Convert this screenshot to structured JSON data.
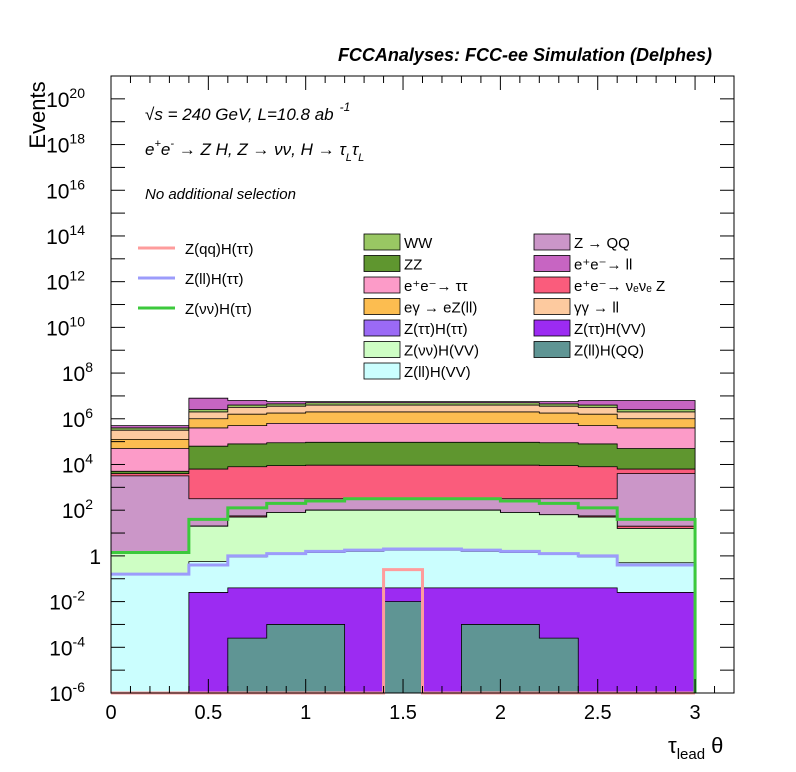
{
  "header": {
    "title": "FCCAnalyses: FCC-ee Simulation (Delphes)"
  },
  "annotations": {
    "line1_sqrt": "√s",
    "line1_rest": " = 240 GeV, L=10.8 ab",
    "line1_exp": "-1",
    "line2_e1": "e",
    "line2_e1_sup": "+",
    "line2_e2": "e",
    "line2_e2_sup": "-",
    "line2_proc": " → Z H, Z  → νν, H  → τ",
    "line2_sub1": "L",
    "line2_tau2": "τ",
    "line2_sub2": "L",
    "selection": "No additional selection"
  },
  "axes": {
    "ylabel": "Events",
    "xlabel_main": "τ",
    "xlabel_sub": "lead",
    "xlabel_var": " θ"
  },
  "chart_data": {
    "type": "bar",
    "stacked": true,
    "y_scale": "log",
    "x_range": [
      0,
      3.2
    ],
    "y_range": [
      1e-06,
      1e+21
    ],
    "x_edges": [
      0,
      0.2,
      0.4,
      0.6,
      0.8,
      1.0,
      1.2,
      1.4,
      1.6,
      1.8,
      2.0,
      2.2,
      2.4,
      2.6,
      2.8,
      3.0
    ],
    "x_ticks": [
      {
        "v": 0,
        "label": "0"
      },
      {
        "v": 0.5,
        "label": "0.5"
      },
      {
        "v": 1,
        "label": "1"
      },
      {
        "v": 1.5,
        "label": "1.5"
      },
      {
        "v": 2,
        "label": "2"
      },
      {
        "v": 2.5,
        "label": "2.5"
      },
      {
        "v": 3,
        "label": "3"
      }
    ],
    "y_ticks": [
      {
        "exp": -6,
        "base": "10",
        "sup": "-6"
      },
      {
        "exp": -4,
        "base": "10",
        "sup": "-4"
      },
      {
        "exp": -2,
        "base": "10",
        "sup": "-2"
      },
      {
        "exp": 0,
        "base": "1",
        "sup": ""
      },
      {
        "exp": 2,
        "base": "10",
        "sup": "2"
      },
      {
        "exp": 4,
        "base": "10",
        "sup": "4"
      },
      {
        "exp": 6,
        "base": "10",
        "sup": "6"
      },
      {
        "exp": 8,
        "base": "10",
        "sup": "8"
      },
      {
        "exp": 10,
        "base": "10",
        "sup": "10"
      },
      {
        "exp": 12,
        "base": "10",
        "sup": "12"
      },
      {
        "exp": 14,
        "base": "10",
        "sup": "14"
      },
      {
        "exp": 16,
        "base": "10",
        "sup": "16"
      },
      {
        "exp": 18,
        "base": "10",
        "sup": "18"
      },
      {
        "exp": 20,
        "base": "10",
        "sup": "20"
      }
    ],
    "stack_cumulative_log10": [
      {
        "name": "Z(ll)H(QQ)",
        "color": "#5f9594",
        "values": [
          -6,
          -6,
          -6,
          -3.6,
          -3.0,
          -3.0,
          -6,
          -2.0,
          -6,
          -3.0,
          -3.0,
          -3.6,
          -6,
          -6,
          -6
        ]
      },
      {
        "name": "Z(ττ)H(VV)",
        "color": "#9c2bf2",
        "values": [
          -6,
          -6,
          -1.6,
          -1.4,
          -1.4,
          -1.4,
          -1.4,
          -1.4,
          -1.4,
          -1.4,
          -1.4,
          -1.4,
          -1.4,
          -1.6,
          -1.6
        ]
      },
      {
        "name": "Z(ll)H(VV)",
        "color": "#cbfefe",
        "values": [
          -0.8,
          -0.8,
          -0.25,
          -0.05,
          0.1,
          0.15,
          0.2,
          0.25,
          0.25,
          0.2,
          0.15,
          0.1,
          -0.05,
          -0.3,
          -0.3
        ]
      },
      {
        "name": "Z(νν)H(VV)",
        "color": "#cefec4",
        "values": [
          0.1,
          0.1,
          1.3,
          1.7,
          1.9,
          2.0,
          2.0,
          2.0,
          2.0,
          2.0,
          1.9,
          1.8,
          1.7,
          1.2,
          1.2
        ]
      },
      {
        "name": "Z(ττ)H(ττ)",
        "color": "#9b6af6",
        "values": [
          0.1,
          0.1,
          1.3,
          1.7,
          1.9,
          2.0,
          2.0,
          2.0,
          2.0,
          2.0,
          1.9,
          1.8,
          1.7,
          1.2,
          1.2
        ]
      },
      {
        "name": "e+e- → νeνe Z",
        "color": "#fa5c7c",
        "values": [
          0.1,
          0.1,
          1.3,
          1.75,
          1.9,
          2.0,
          2.0,
          2.0,
          2.0,
          2.0,
          1.9,
          1.8,
          1.75,
          1.3,
          1.3
        ]
      },
      {
        "name": "Z → QQ",
        "color": "#cb96c8",
        "values": [
          3.5,
          3.5,
          2.5,
          2.5,
          2.5,
          2.5,
          2.5,
          2.5,
          2.5,
          2.5,
          2.5,
          2.5,
          2.5,
          3.6,
          3.6
        ]
      },
      {
        "name": "e+e- → νeνe Z (upper)",
        "color": "#fa5c7c",
        "values": [
          3.6,
          3.6,
          3.8,
          3.9,
          3.95,
          3.97,
          3.97,
          3.97,
          3.97,
          3.97,
          3.97,
          3.95,
          3.9,
          3.8,
          3.8
        ]
      },
      {
        "name": "ZZ",
        "color": "#5f962f",
        "values": [
          3.7,
          3.7,
          4.8,
          4.9,
          4.95,
          4.97,
          4.97,
          4.97,
          4.97,
          4.97,
          4.97,
          4.95,
          4.9,
          4.7,
          4.7
        ]
      },
      {
        "name": "e+e- → ττ",
        "color": "#fc9bc8",
        "values": [
          4.7,
          4.7,
          5.6,
          5.7,
          5.8,
          5.8,
          5.8,
          5.8,
          5.8,
          5.8,
          5.8,
          5.8,
          5.7,
          5.6,
          5.6
        ]
      },
      {
        "name": "eγ → eZ(ll)",
        "color": "#fcbd50",
        "values": [
          5.1,
          5.1,
          6.0,
          6.2,
          6.25,
          6.3,
          6.3,
          6.3,
          6.3,
          6.3,
          6.3,
          6.25,
          6.2,
          6.0,
          6.0
        ]
      },
      {
        "name": "γγ → ll",
        "color": "#fdca9f",
        "values": [
          5.5,
          5.5,
          6.3,
          6.5,
          6.55,
          6.6,
          6.6,
          6.6,
          6.6,
          6.6,
          6.6,
          6.55,
          6.5,
          6.3,
          6.3
        ]
      },
      {
        "name": "WW",
        "color": "#99c763",
        "values": [
          5.6,
          5.6,
          6.4,
          6.6,
          6.65,
          6.7,
          6.7,
          6.7,
          6.7,
          6.7,
          6.7,
          6.65,
          6.6,
          6.4,
          6.4
        ]
      },
      {
        "name": "e+e- → ll",
        "color": "#c765c2",
        "values": [
          5.7,
          5.7,
          6.9,
          6.8,
          6.75,
          6.75,
          6.75,
          6.75,
          6.75,
          6.75,
          6.75,
          6.75,
          6.8,
          6.8,
          6.8
        ]
      }
    ],
    "signal_lines_log10": [
      {
        "name": "Z(qq)H(ττ)",
        "color": "#fe9c9c",
        "values": [
          -6,
          -6,
          -6,
          -6,
          -6,
          -6,
          -6,
          -0.6,
          -6,
          -6,
          -6,
          -6,
          -6,
          -6,
          -6
        ]
      },
      {
        "name": "Z(ll)H(ττ)",
        "color": "#9c9cfb",
        "values": [
          -0.8,
          -0.8,
          -0.4,
          0.0,
          0.1,
          0.2,
          0.25,
          0.3,
          0.3,
          0.25,
          0.2,
          0.1,
          0.0,
          -0.4,
          -0.4
        ]
      },
      {
        "name": "Z(νν)H(ττ)",
        "color": "#3cc93c",
        "values": [
          0.15,
          0.15,
          1.6,
          2.1,
          2.3,
          2.4,
          2.5,
          2.5,
          2.5,
          2.5,
          2.4,
          2.3,
          2.1,
          1.6,
          1.6
        ]
      }
    ],
    "legend_lines": [
      {
        "label": "Z(qq)H(ττ)",
        "color": "#fe9c9c"
      },
      {
        "label": "Z(ll)H(ττ)",
        "color": "#9c9cfb"
      },
      {
        "label": "Z(νν)H(ττ)",
        "color": "#3cc93c"
      }
    ],
    "legend_boxes_col1": [
      {
        "label": "WW",
        "color": "#99c763"
      },
      {
        "label": "ZZ",
        "color": "#5f962f"
      },
      {
        "label": "e⁺e⁻→ ττ",
        "color": "#fc9bc8"
      },
      {
        "label": "eγ → eZ(ll)",
        "color": "#fcbd50"
      },
      {
        "label": "Z(ττ)H(ττ)",
        "color": "#9b6af6"
      },
      {
        "label": "Z(νν)H(VV)",
        "color": "#cefec4"
      },
      {
        "label": "Z(ll)H(VV)",
        "color": "#cbfefe"
      }
    ],
    "legend_boxes_col2": [
      {
        "label": "Z → QQ",
        "color": "#cb96c8"
      },
      {
        "label": "e⁺e⁻→ ll",
        "color": "#c765c2"
      },
      {
        "label": "e⁺e⁻→ νₑνₑ Z",
        "color": "#fa5c7c"
      },
      {
        "label": "γγ → ll",
        "color": "#fdca9f"
      },
      {
        "label": "Z(ττ)H(VV)",
        "color": "#9c2bf2"
      },
      {
        "label": "Z(ll)H(QQ)",
        "color": "#5f9594"
      }
    ]
  }
}
